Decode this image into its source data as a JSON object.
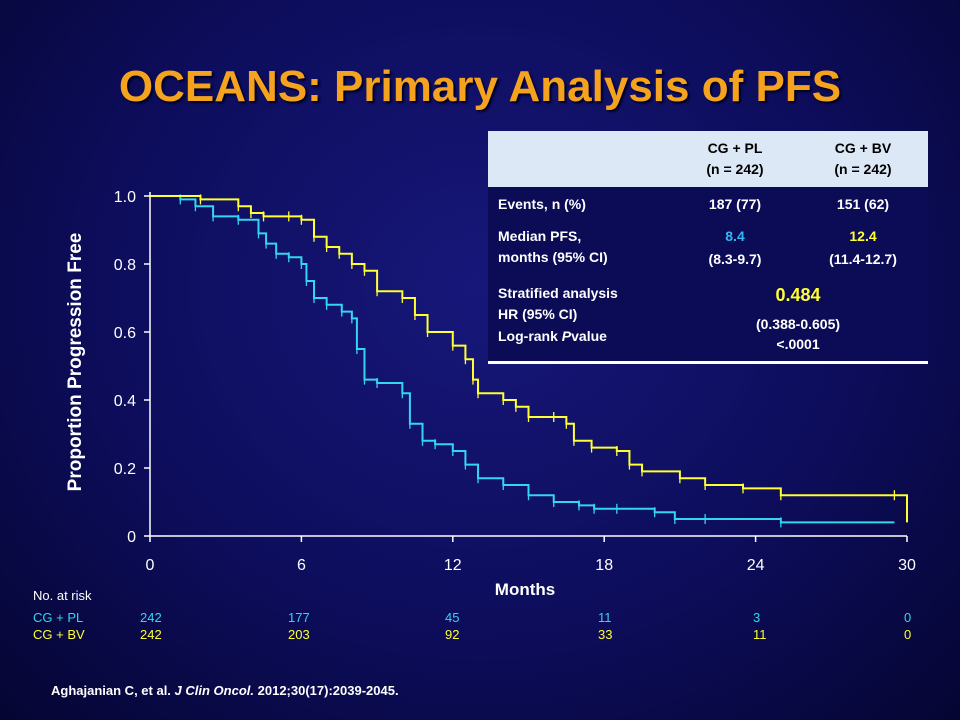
{
  "title": "OCEANS: Primary Analysis of PFS",
  "colors": {
    "title": "#f5a31f",
    "cg_pl": "#33d6f0",
    "cg_bv": "#ffff33",
    "background": "#0d0d5c"
  },
  "chart_data": {
    "type": "line",
    "xlabel": "Months",
    "ylabel": "Proportion Progression Free",
    "xlim": [
      0,
      30
    ],
    "ylim": [
      0,
      1.0
    ],
    "xticks": [
      "0",
      "6",
      "12",
      "18",
      "24",
      "30"
    ],
    "yticks": [
      "0",
      "0.2",
      "0.4",
      "0.6",
      "0.8",
      "1.0"
    ],
    "grid": false,
    "series": [
      {
        "name": "CG + PL",
        "color": "#33d6f0",
        "x": [
          0,
          1.2,
          1.8,
          2.5,
          3.5,
          4.3,
          4.6,
          5.0,
          5.5,
          6.0,
          6.2,
          6.5,
          7.0,
          7.6,
          8.0,
          8.2,
          8.5,
          9.0,
          10.0,
          10.3,
          10.8,
          11.3,
          12.0,
          12.5,
          13.0,
          14.0,
          15.0,
          16.0,
          17.0,
          17.6,
          18.5,
          20.0,
          20.8,
          22.0,
          25.0,
          29.5
        ],
        "y": [
          1.0,
          0.99,
          0.97,
          0.94,
          0.93,
          0.89,
          0.86,
          0.83,
          0.82,
          0.8,
          0.75,
          0.7,
          0.68,
          0.66,
          0.64,
          0.55,
          0.46,
          0.45,
          0.42,
          0.33,
          0.28,
          0.27,
          0.25,
          0.21,
          0.17,
          0.15,
          0.12,
          0.1,
          0.09,
          0.08,
          0.08,
          0.07,
          0.05,
          0.05,
          0.04,
          0.04
        ]
      },
      {
        "name": "CG + BV",
        "color": "#ffff33",
        "x": [
          0,
          2.0,
          3.5,
          4.0,
          4.5,
          5.5,
          6.0,
          6.5,
          7.0,
          7.5,
          8.0,
          8.5,
          9.0,
          10.0,
          10.5,
          11.0,
          12.0,
          12.5,
          12.8,
          13.0,
          14.0,
          14.5,
          15.0,
          16.0,
          16.5,
          16.8,
          17.5,
          18.5,
          19.0,
          19.5,
          21.0,
          22.0,
          23.5,
          25.0,
          29.5,
          30.0
        ],
        "y": [
          1.0,
          0.99,
          0.97,
          0.95,
          0.94,
          0.94,
          0.93,
          0.88,
          0.85,
          0.83,
          0.8,
          0.78,
          0.72,
          0.7,
          0.65,
          0.6,
          0.56,
          0.52,
          0.46,
          0.42,
          0.4,
          0.38,
          0.35,
          0.35,
          0.33,
          0.28,
          0.26,
          0.25,
          0.21,
          0.19,
          0.17,
          0.15,
          0.14,
          0.12,
          0.12,
          0.04
        ]
      }
    ]
  },
  "table": {
    "col1_header": [
      "CG + PL",
      "(n = 242)"
    ],
    "col2_header": [
      "CG + BV",
      "(n = 242)"
    ],
    "rows": [
      {
        "label": [
          "Events, n (%)"
        ],
        "col1": "187 (77)",
        "col2": "151 (62)"
      },
      {
        "label": [
          "Median PFS,",
          "months (95% CI)"
        ],
        "col1_main": "8.4",
        "col1_ci": "(8.3-9.7)",
        "col2_main": "12.4",
        "col2_ci": "(11.4-12.7)"
      },
      {
        "label": [
          "Stratified analysis",
          "HR (95% CI)",
          "Log-rank",
          "P",
          "value"
        ],
        "hr": "0.484",
        "hr_ci": "(0.388-0.605)",
        "p": "<.0001"
      }
    ]
  },
  "risk_table": {
    "title": "No. at risk",
    "rows": [
      {
        "name": "CG + PL",
        "values": [
          "242",
          "177",
          "45",
          "11",
          "3",
          "0"
        ]
      },
      {
        "name": "CG + BV",
        "values": [
          "242",
          "203",
          "92",
          "33",
          "11",
          "0"
        ]
      }
    ]
  },
  "citation": {
    "authors": "Aghajanian C, et al.",
    "journal": "J Clin Oncol.",
    "ref": "2012;30(17):2039-2045."
  }
}
